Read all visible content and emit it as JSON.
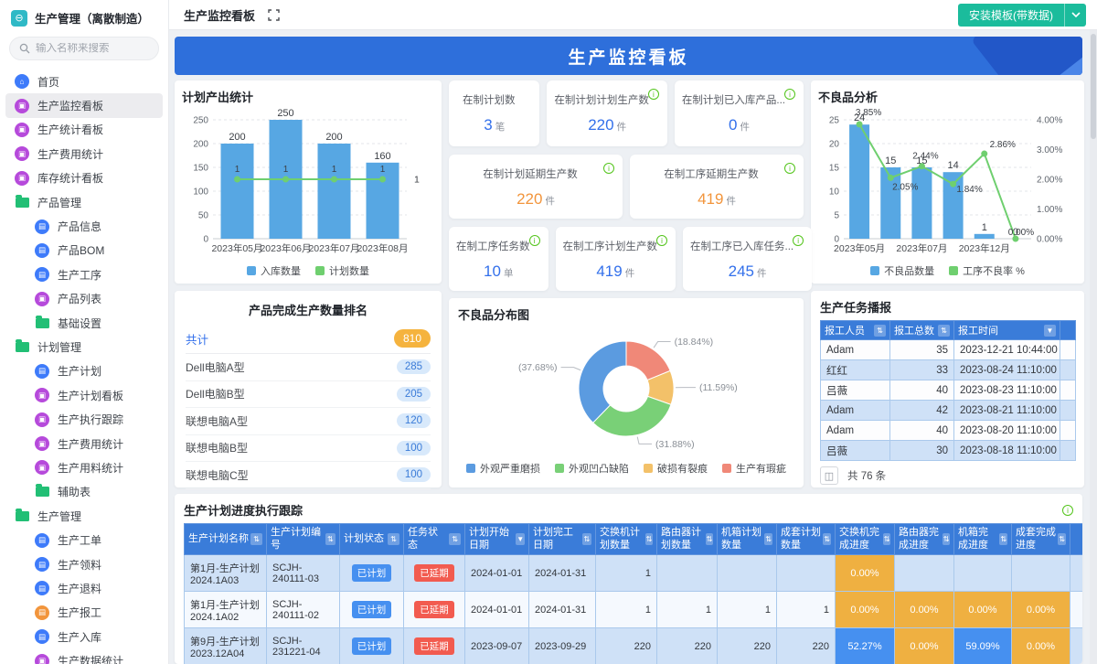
{
  "colors": {
    "bar_blue": "#57a7e3",
    "line_green": "#6fcf6f",
    "banner_blue": "#2e6fdb",
    "header_blue": "#3a7cd9",
    "row_alt_blue": "#cfe1f7",
    "accent_teal": "#1bbc9c",
    "value_blue": "#3370eb",
    "value_orange": "#f2953c",
    "cell_orange": "#efb041",
    "cell_blue": "#4690f0",
    "badge_red": "#f25b4f",
    "donut_blue": "#5b9be0",
    "donut_green": "#79d077",
    "donut_yellow": "#f3c169",
    "donut_red": "#f08878"
  },
  "sidebar": {
    "app_title": "生产管理（离散制造）",
    "search_placeholder": "输入名称来搜索",
    "items": [
      {
        "label": "首页",
        "icon": "home",
        "color": "blue",
        "indent": false,
        "active": false
      },
      {
        "label": "生产监控看板",
        "icon": "monitor",
        "color": "purple",
        "indent": false,
        "active": true
      },
      {
        "label": "生产统计看板",
        "icon": "monitor",
        "color": "purple",
        "indent": false,
        "active": false
      },
      {
        "label": "生产费用统计",
        "icon": "monitor",
        "color": "purple",
        "indent": false,
        "active": false
      },
      {
        "label": "库存统计看板",
        "icon": "monitor",
        "color": "purple",
        "indent": false,
        "active": false
      },
      {
        "label": "产品管理",
        "icon": "folder",
        "color": "green",
        "indent": false,
        "active": false
      },
      {
        "label": "产品信息",
        "icon": "doc",
        "color": "blue",
        "indent": true,
        "active": false
      },
      {
        "label": "产品BOM",
        "icon": "doc",
        "color": "blue",
        "indent": true,
        "active": false
      },
      {
        "label": "生产工序",
        "icon": "doc",
        "color": "blue",
        "indent": true,
        "active": false
      },
      {
        "label": "产品列表",
        "icon": "monitor",
        "color": "purple",
        "indent": true,
        "active": false
      },
      {
        "label": "基础设置",
        "icon": "folder",
        "color": "green",
        "indent": true,
        "active": false
      },
      {
        "label": "计划管理",
        "icon": "folder",
        "color": "green",
        "indent": false,
        "active": false
      },
      {
        "label": "生产计划",
        "icon": "doc",
        "color": "blue",
        "indent": true,
        "active": false
      },
      {
        "label": "生产计划看板",
        "icon": "monitor",
        "color": "purple",
        "indent": true,
        "active": false
      },
      {
        "label": "生产执行跟踪",
        "icon": "monitor",
        "color": "purple",
        "indent": true,
        "active": false
      },
      {
        "label": "生产费用统计",
        "icon": "monitor",
        "color": "purple",
        "indent": true,
        "active": false
      },
      {
        "label": "生产用料统计",
        "icon": "monitor",
        "color": "purple",
        "indent": true,
        "active": false
      },
      {
        "label": "辅助表",
        "icon": "folder",
        "color": "green",
        "indent": true,
        "active": false
      },
      {
        "label": "生产管理",
        "icon": "folder",
        "color": "green",
        "indent": false,
        "active": false
      },
      {
        "label": "生产工单",
        "icon": "doc",
        "color": "blue",
        "indent": true,
        "active": false
      },
      {
        "label": "生产领料",
        "icon": "doc",
        "color": "blue",
        "indent": true,
        "active": false
      },
      {
        "label": "生产退料",
        "icon": "doc",
        "color": "blue",
        "indent": true,
        "active": false
      },
      {
        "label": "生产报工",
        "icon": "doc",
        "color": "orange",
        "indent": true,
        "active": false
      },
      {
        "label": "生产入库",
        "icon": "doc",
        "color": "blue",
        "indent": true,
        "active": false
      },
      {
        "label": "生产数据统计",
        "icon": "monitor",
        "color": "purple",
        "indent": true,
        "active": false
      }
    ]
  },
  "topbar": {
    "tab_label": "生产监控看板",
    "install_label": "安装模板(带数据)"
  },
  "banner": {
    "title": "生产监控看板"
  },
  "stat_cards": [
    {
      "label": "在制计划数",
      "value": "3",
      "unit": "笔",
      "color": "blue",
      "info": false,
      "row": 1
    },
    {
      "label": "在制计划计划生产数",
      "value": "220",
      "unit": "件",
      "color": "blue",
      "info": true,
      "row": 1
    },
    {
      "label": "在制计划已入库产品...",
      "value": "0",
      "unit": "件",
      "color": "blue",
      "info": true,
      "row": 1
    },
    {
      "label": "在制计划延期生产数",
      "value": "220",
      "unit": "件",
      "color": "orange",
      "info": true,
      "row": 2
    },
    {
      "label": "在制工序延期生产数",
      "value": "419",
      "unit": "件",
      "color": "orange",
      "info": true,
      "row": 2
    },
    {
      "label": "在制工序任务数",
      "value": "10",
      "unit": "单",
      "color": "blue",
      "info": true,
      "row": 3
    },
    {
      "label": "在制工序计划生产数",
      "value": "419",
      "unit": "件",
      "color": "blue",
      "info": true,
      "row": 3
    },
    {
      "label": "在制工序已入库任务...",
      "value": "245",
      "unit": "件",
      "color": "blue",
      "info": true,
      "row": 3
    }
  ],
  "chart_data": [
    {
      "id": "output",
      "type": "bar+line",
      "title": "计划产出统计",
      "categories": [
        "2023年05月",
        "2023年06月",
        "2023年07月",
        "2023年08月"
      ],
      "series": [
        {
          "name": "入库数量",
          "type": "bar",
          "values": [
            200,
            250,
            200,
            160
          ]
        },
        {
          "name": "计划数量",
          "type": "line",
          "values": [
            1,
            1,
            1,
            1
          ],
          "labels": [
            "1",
            "1",
            "1",
            "1"
          ]
        }
      ],
      "x_labels_shown": [
        {
          "index": 0,
          "label": "2023年05月"
        },
        {
          "index": 1,
          "label": "2023年06月"
        },
        {
          "index": 2,
          "label": "2023年07月"
        },
        {
          "index": 3,
          "label": "2023年08月"
        }
      ],
      "y_left": {
        "min": 0,
        "max": 250,
        "step": 50
      },
      "y_right": {
        "max": 2,
        "ticks": [
          {
            "value": 1,
            "label": "1"
          }
        ]
      },
      "legend": [
        "入库数量",
        "计划数量"
      ],
      "grid": "dotted",
      "legend_position": "bottom"
    },
    {
      "id": "defect",
      "type": "bar+line",
      "title": "不良品分析",
      "series": [
        {
          "name": "不良品数量",
          "type": "bar",
          "values": [
            24,
            15,
            15,
            14,
            1,
            0
          ]
        },
        {
          "name": "工序不良率 %",
          "type": "line",
          "values": [
            3.85,
            2.05,
            2.44,
            1.84,
            2.86,
            0
          ],
          "labels": [
            "3.85%",
            "2.05%",
            "2.44%",
            "1.84%",
            "2.86%",
            "0.00%"
          ]
        }
      ],
      "x_labels_shown": [
        {
          "index": 0,
          "label": "2023年05月"
        },
        {
          "index": 2,
          "label": "2023年07月"
        },
        {
          "index": 4,
          "label": "2023年12月"
        }
      ],
      "y_left": {
        "min": 0,
        "max": 25,
        "step": 5
      },
      "y_right": {
        "max": 4,
        "labels": [
          "0.00%",
          "1.00%",
          "2.00%",
          "3.00%",
          "4.00%"
        ]
      },
      "legend": [
        "不良品数量",
        "工序不良率 %"
      ],
      "grid": "dotted",
      "legend_position": "bottom"
    },
    {
      "id": "defect_dist",
      "type": "donut",
      "title": "不良品分布图",
      "slices": [
        {
          "label": "外观严重磨损",
          "pct": 37.68,
          "color": "#5b9be0"
        },
        {
          "label": "外观凹凸缺陷",
          "pct": 31.88,
          "color": "#79d077"
        },
        {
          "label": "破损有裂痕",
          "pct": 11.59,
          "color": "#f3c169"
        },
        {
          "label": "生产有瑕疵",
          "pct": 18.84,
          "color": "#f08878"
        }
      ],
      "draw_order": [
        3,
        2,
        1,
        0
      ],
      "legend": [
        "外观严重磨损",
        "外观凹凸缺陷",
        "破损有裂痕",
        "生产有瑕疵"
      ],
      "legend_position": "bottom"
    }
  ],
  "ranking": {
    "title": "产品完成生产数量排名",
    "total_label": "共计",
    "total_value": "810",
    "items": [
      {
        "name": "Dell电脑A型",
        "value": "285"
      },
      {
        "name": "Dell电脑B型",
        "value": "205"
      },
      {
        "name": "联想电脑A型",
        "value": "120"
      },
      {
        "name": "联想电脑B型",
        "value": "100"
      },
      {
        "name": "联想电脑C型",
        "value": "100"
      }
    ]
  },
  "tasks": {
    "title": "生产任务播报",
    "columns": [
      "报工人员",
      "报工总数",
      "报工时间"
    ],
    "rows": [
      [
        "Adam",
        "35",
        "2023-12-21 10:44:00"
      ],
      [
        "红红",
        "33",
        "2023-08-24 11:10:00"
      ],
      [
        "吕薇",
        "40",
        "2023-08-23 11:10:00"
      ],
      [
        "Adam",
        "42",
        "2023-08-21 11:10:00"
      ],
      [
        "Adam",
        "40",
        "2023-08-20 11:10:00"
      ],
      [
        "吕薇",
        "30",
        "2023-08-18 11:10:00"
      ]
    ],
    "footer_total": "共 76 条"
  },
  "progress": {
    "title": "生产计划进度执行跟踪",
    "columns": [
      "生产计划名称",
      "生产计划编号",
      "计划状态",
      "任务状态",
      "计划开始日期",
      "计划完工日期",
      "交换机计划数量",
      "路由器计划数量",
      "机箱计划数量",
      "成套计划数量",
      "交换机完成进度",
      "路由器完成进度",
      "机箱完成进度",
      "成套完成进度"
    ],
    "rows": [
      {
        "name": "第1月-生产计划 2024.1A03",
        "code": "SCJH-240111-03",
        "plan_status": "已计划",
        "task_status": "已延期",
        "start": "2024-01-01",
        "end": "2024-01-31",
        "quantities": [
          "1",
          "",
          "",
          ""
        ],
        "progress": [
          {
            "text": "0.00%",
            "color": "orange"
          },
          null,
          null,
          null
        ]
      },
      {
        "name": "第1月-生产计划 2024.1A02",
        "code": "SCJH-240111-02",
        "plan_status": "已计划",
        "task_status": "已延期",
        "start": "2024-01-01",
        "end": "2024-01-31",
        "quantities": [
          "1",
          "1",
          "1",
          "1"
        ],
        "progress": [
          {
            "text": "0.00%",
            "color": "orange"
          },
          {
            "text": "0.00%",
            "color": "orange"
          },
          {
            "text": "0.00%",
            "color": "orange"
          },
          {
            "text": "0.00%",
            "color": "orange"
          }
        ]
      },
      {
        "name": "第9月-生产计划 2023.12A04",
        "code": "SCJH-231221-04",
        "plan_status": "已计划",
        "task_status": "已延期",
        "start": "2023-09-07",
        "end": "2023-09-29",
        "quantities": [
          "220",
          "220",
          "220",
          "220"
        ],
        "progress": [
          {
            "text": "52.27%",
            "color": "blue"
          },
          {
            "text": "0.00%",
            "color": "orange"
          },
          {
            "text": "59.09%",
            "color": "blue"
          },
          {
            "text": "0.00%",
            "color": "orange"
          }
        ]
      }
    ]
  }
}
